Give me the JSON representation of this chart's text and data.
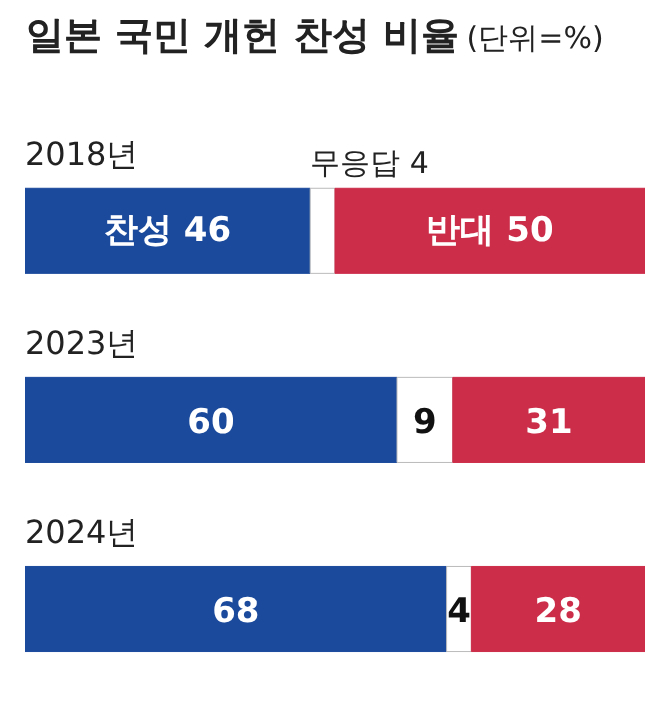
{
  "chart_data": {
    "type": "bar",
    "orientation": "horizontal",
    "stacked": true,
    "title": "일본 국민 개헌 찬성 비율",
    "subtitle": "(단위=%)",
    "categories": [
      "2018년",
      "2023년",
      "2024년"
    ],
    "xlim": [
      0,
      100
    ],
    "series": [
      {
        "color": "#1b4a9c",
        "values": [
          46,
          60,
          68
        ],
        "value_labels": [
          "찬성 46",
          "60",
          "68"
        ]
      },
      {
        "color": "#ffffff",
        "values": [
          4,
          9,
          4
        ],
        "value_labels": [
          null,
          "9",
          "4"
        ]
      },
      {
        "color": "#cc2d49",
        "values": [
          50,
          31,
          28
        ],
        "value_labels": [
          "반대 50",
          "31",
          "28"
        ]
      }
    ],
    "annotations": [
      "무응답 4"
    ],
    "grid": false
  }
}
